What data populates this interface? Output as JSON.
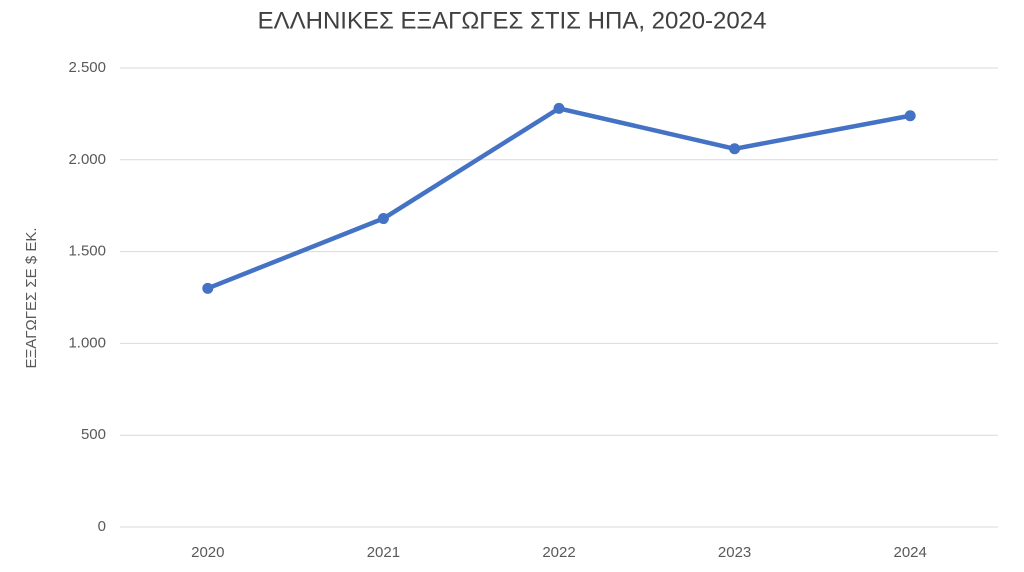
{
  "chart_data": {
    "type": "line",
    "title": "ΕΛΛΗΝΙΚΕΣ ΕΞΑΓΩΓΕΣ ΣΤΙΣ ΗΠΑ, 2020-2024",
    "y_label": "ΕΞΑΓΩΓΕΣ ΣΕ $ ΕΚ.",
    "categories": [
      "2020",
      "2021",
      "2022",
      "2023",
      "2024"
    ],
    "values": [
      1300,
      1680,
      2280,
      2060,
      2240
    ],
    "color": "#4472c4",
    "ylim": [
      0,
      2500
    ],
    "yticks": [
      0,
      500,
      {
        "value": 1000,
        "label": "1.000"
      },
      {
        "value": 1500,
        "label": "1.500"
      },
      {
        "value": 2000,
        "label": "2.000"
      },
      {
        "value": 2500,
        "label": "2.500"
      }
    ],
    "grid": true
  }
}
